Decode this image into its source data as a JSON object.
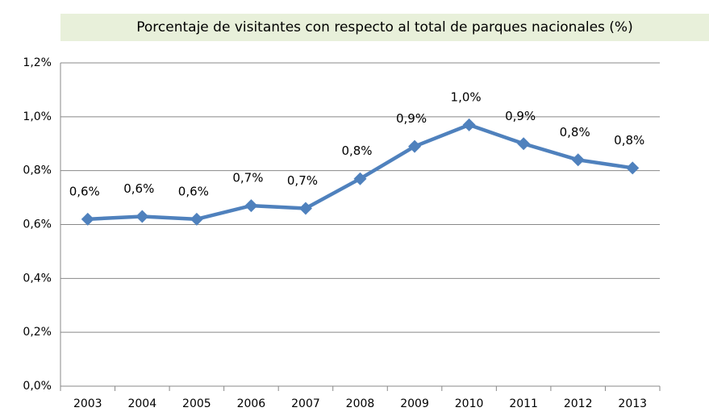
{
  "chart_data": {
    "type": "line",
    "title": "Porcentaje de visitantes  con respecto al total de parques nacionales (%)",
    "categories": [
      "2003",
      "2004",
      "2005",
      "2006",
      "2007",
      "2008",
      "2009",
      "2010",
      "2011",
      "2012",
      "2013"
    ],
    "series": [
      {
        "name": "Porcentaje",
        "color": "#4f81bd",
        "values": [
          0.62,
          0.63,
          0.62,
          0.67,
          0.66,
          0.77,
          0.89,
          0.97,
          0.9,
          0.84,
          0.81
        ],
        "value_labels": [
          "0,6%",
          "0,6%",
          "0,6%",
          "0,7%",
          "0,7%",
          "0,8%",
          "0,9%",
          "1,0%",
          "0,9%",
          "0,8%",
          "0,8%"
        ]
      }
    ],
    "ylim": [
      0,
      1.2
    ],
    "yticks": [
      {
        "value": 0,
        "label": "0,0%"
      },
      {
        "value": 0.2,
        "label": "0,2%"
      },
      {
        "value": 0.4,
        "label": "0,4%"
      },
      {
        "value": 0.6,
        "label": "0,6%"
      },
      {
        "value": 0.8,
        "label": "0,8%"
      },
      {
        "value": 1.0,
        "label": "1,0%"
      },
      {
        "value": 1.2,
        "label": "1,2%"
      }
    ],
    "grid": true
  }
}
